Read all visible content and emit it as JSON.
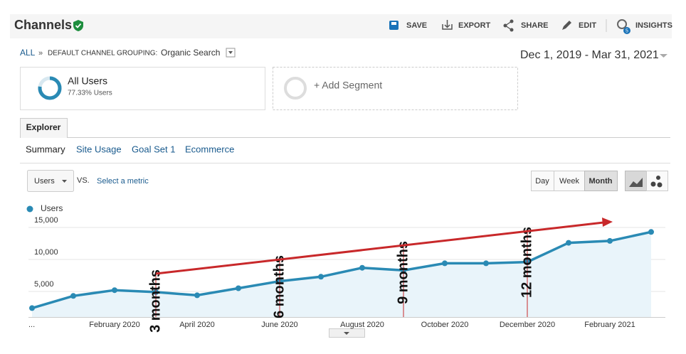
{
  "header": {
    "title": "Channels",
    "actions": [
      "SAVE",
      "EXPORT",
      "SHARE",
      "EDIT",
      "INSIGHTS"
    ],
    "insights_badge": "5"
  },
  "breadcrumb": {
    "root": "ALL",
    "separator": "»",
    "grouping": "DEFAULT CHANNEL GROUPING:",
    "value": "Organic Search"
  },
  "date_range": "Dec 1, 2019 - Mar 31, 2021",
  "segments": [
    {
      "name": "All Users",
      "detail": "77.33% Users"
    },
    {
      "name": "+ Add Segment"
    }
  ],
  "tabs": [
    "Explorer"
  ],
  "subtabs": [
    "Summary",
    "Site Usage",
    "Goal Set 1",
    "Ecommerce"
  ],
  "metric_select": "Users",
  "vs": "VS.",
  "compare": "Select a metric",
  "granularity": [
    "Day",
    "Week",
    "Month"
  ],
  "chart_data": {
    "type": "line",
    "categories": [
      "...",
      null,
      "February 2020",
      null,
      "April 2020",
      null,
      "June 2020",
      null,
      "August 2020",
      null,
      "October 2020",
      null,
      "December 2020",
      null,
      "February 2021",
      null
    ],
    "series": [
      {
        "name": "Users",
        "color": "#2a8ab4",
        "values": [
          2400,
          4300,
          5200,
          4900,
          4400,
          5500,
          6600,
          7300,
          8700,
          8300,
          9400,
          9400,
          9600,
          12600,
          12900,
          14300
        ]
      }
    ],
    "ylim": [
      1000,
      16000
    ],
    "yticks": [
      {
        "value": 5000,
        "label": "5,000"
      },
      {
        "value": 10000,
        "label": "10,000"
      },
      {
        "value": 15000,
        "label": "15,000"
      }
    ],
    "grid": true,
    "annotations": [
      "3 months",
      "6 months",
      "9 months",
      "12 months"
    ]
  }
}
